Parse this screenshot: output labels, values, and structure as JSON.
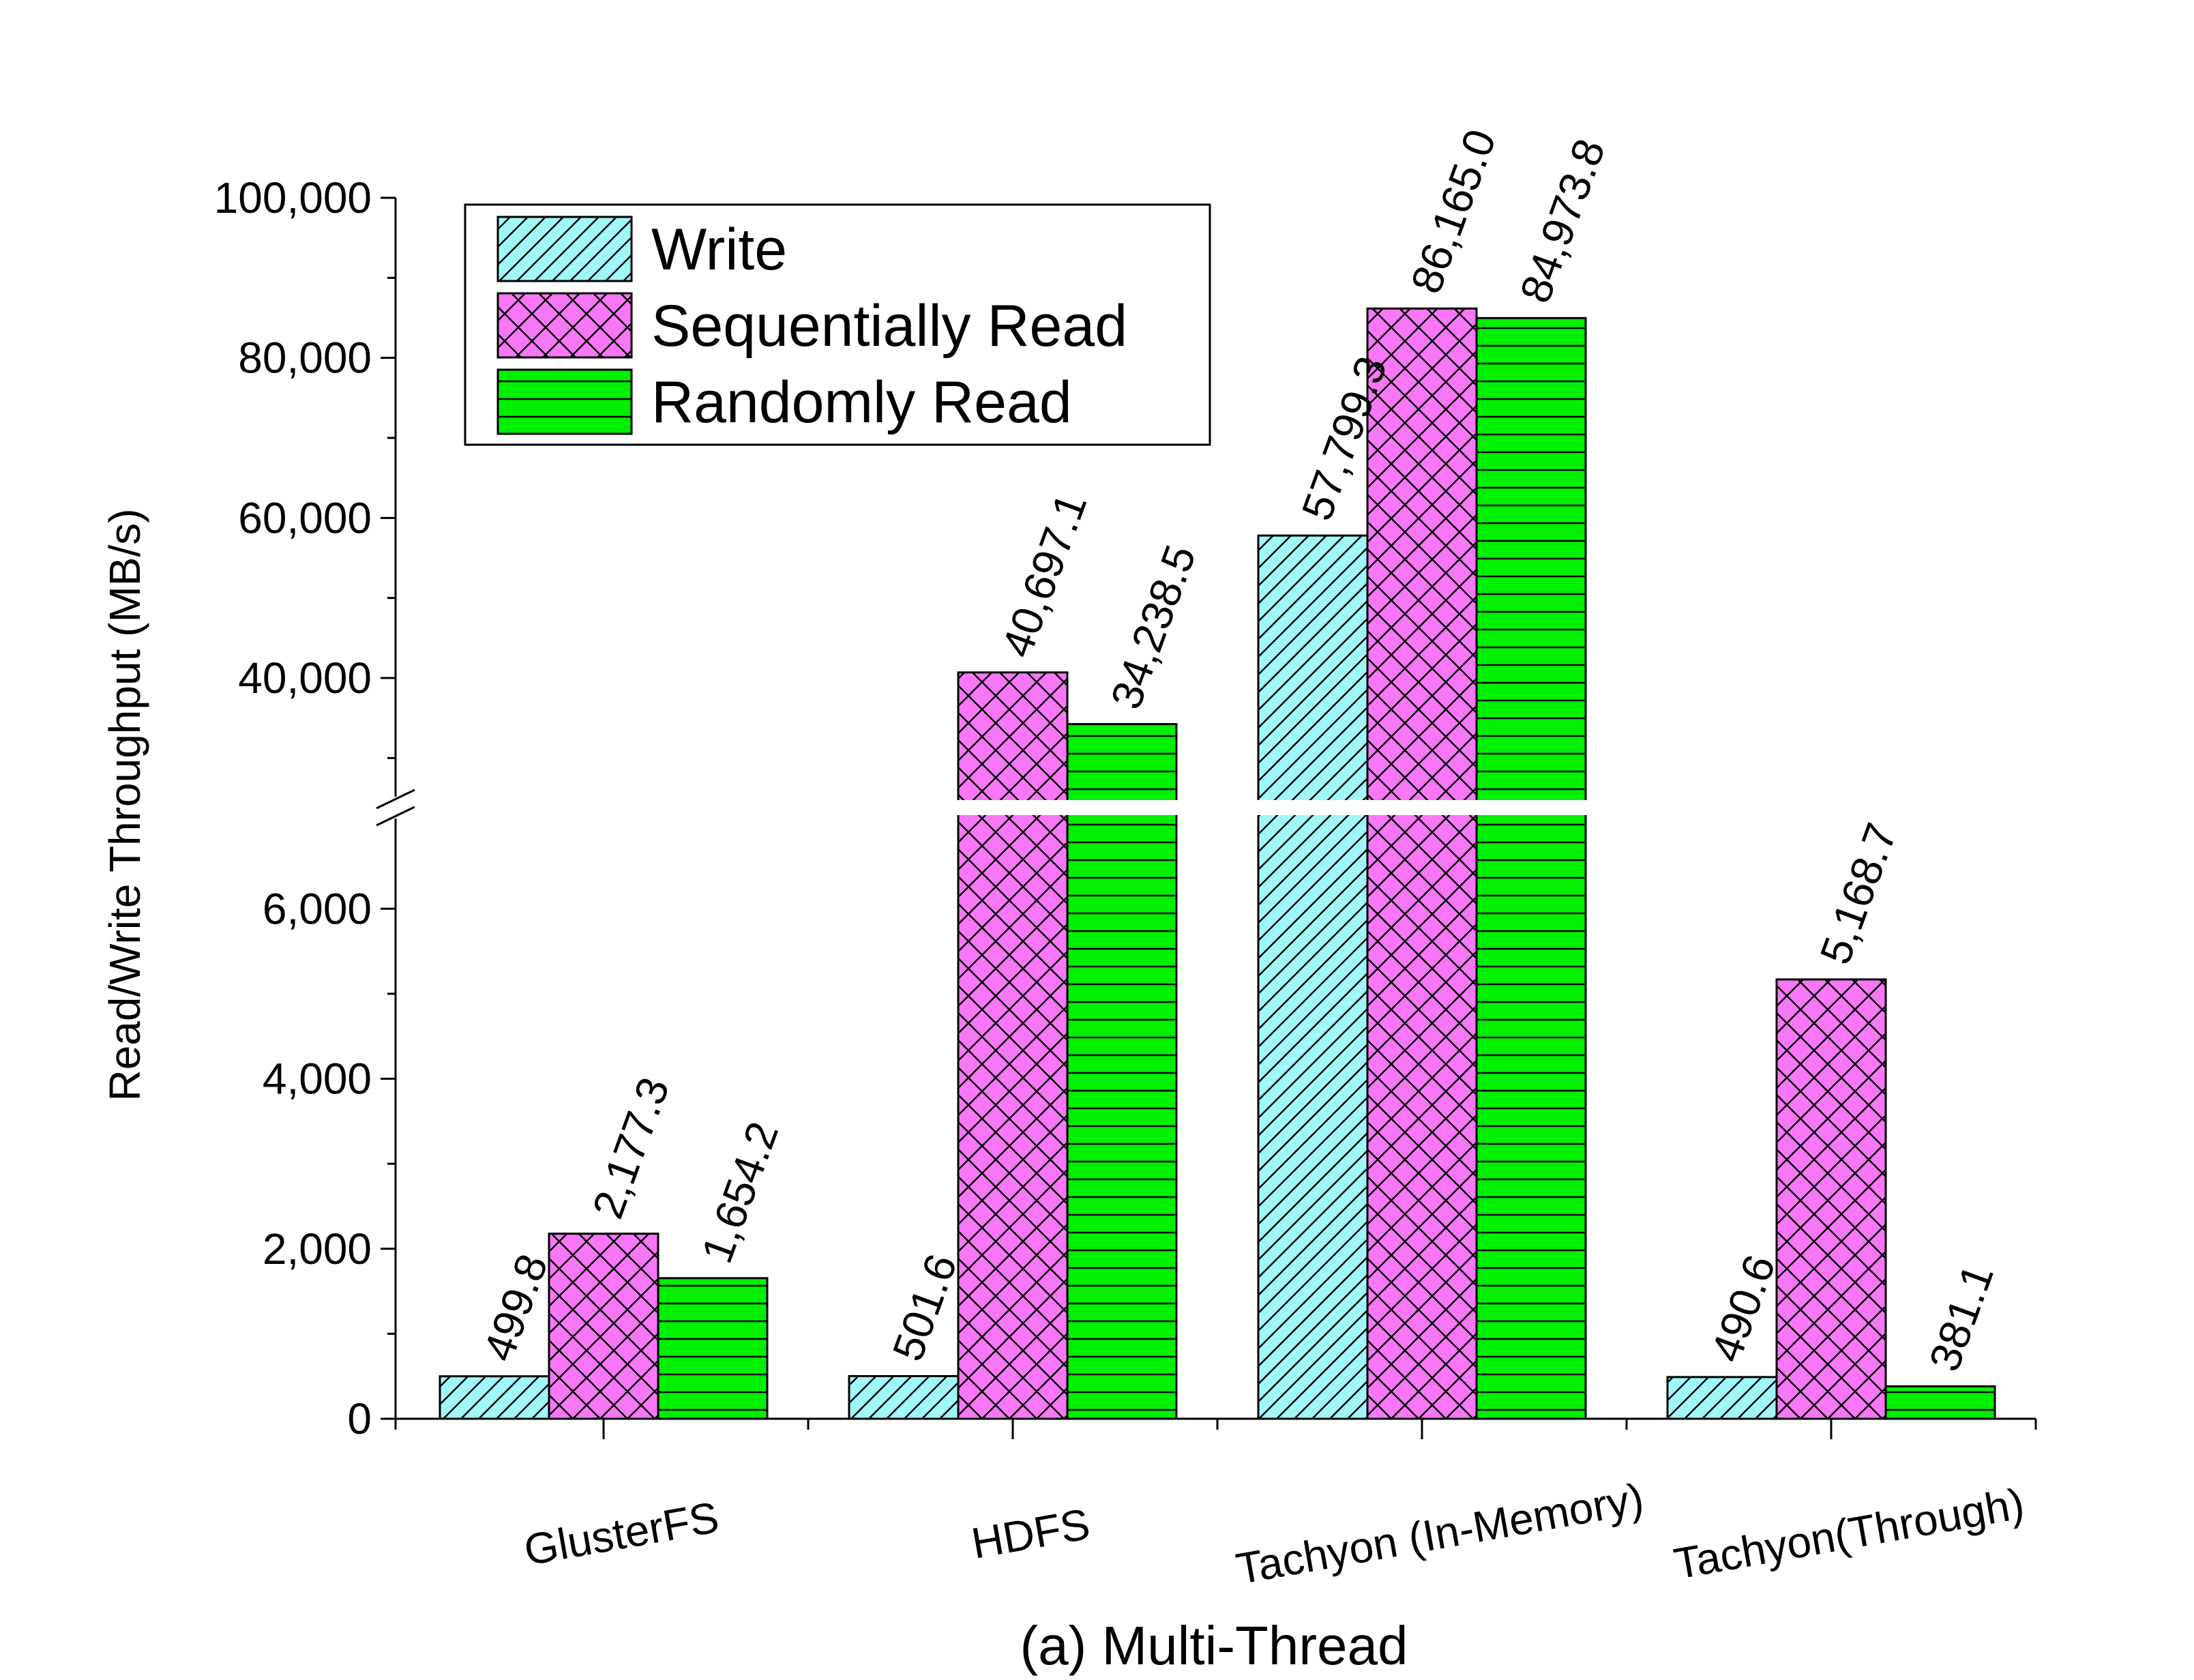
{
  "chart_data": {
    "type": "bar",
    "caption": "(a) Multi-Thread",
    "ylabel": "Read/Write Throughput (MB/s)",
    "xlabel": "",
    "categories": [
      "GlusterFS",
      "HDFS",
      "Tachyon (In-Memory)",
      "Tachyon(Through)"
    ],
    "series": [
      {
        "name": "Write",
        "values": [
          499.8,
          501.6,
          57799.3,
          490.6
        ],
        "labels": [
          "499.8",
          "501.6",
          "57,799.3",
          "490.6"
        ],
        "color": "#9ff7f7",
        "pattern": "diagonal-hatch"
      },
      {
        "name": "Sequentially Read",
        "values": [
          2177.3,
          40697.1,
          86165.0,
          5168.7
        ],
        "labels": [
          "2,177.3",
          "40,697.1",
          "86,165.0",
          "5,168.7"
        ],
        "color": "#f777f7",
        "pattern": "crosshatch"
      },
      {
        "name": "Randomly Read",
        "values": [
          1654.2,
          34238.5,
          84973.8,
          381.1
        ],
        "labels": [
          "1,654.2",
          "34,238.5",
          "84,973.8",
          "381.1"
        ],
        "color": "#00f000",
        "pattern": "horizontal-lines"
      }
    ],
    "y_axis": {
      "broken": true,
      "lower_range": [
        0,
        6500
      ],
      "upper_range": [
        25000,
        100000
      ],
      "lower_ticks": [
        0,
        2000,
        4000,
        6000
      ],
      "lower_tick_labels": [
        "0",
        "2,000",
        "4,000",
        "6,000"
      ],
      "upper_ticks": [
        40000,
        60000,
        80000,
        100000
      ],
      "upper_tick_labels": [
        "40,000",
        "60,000",
        "80,000",
        "100,000"
      ]
    },
    "grid": false,
    "legend": {
      "position": "top-left"
    }
  }
}
